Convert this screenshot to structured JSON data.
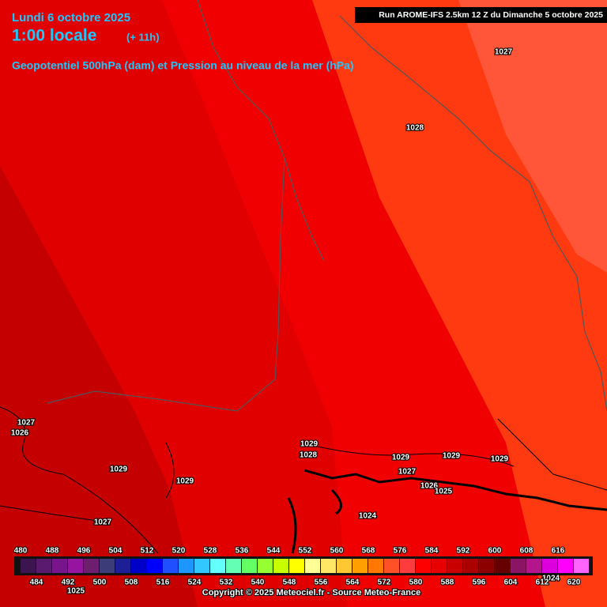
{
  "header": {
    "date": "Lundi 6 octobre 2025",
    "time": "1:00 locale",
    "lead": "(+ 11h)",
    "title": "Geopotentiel 500hPa (dam) et Pression au niveau de la mer (hPa)",
    "run": "Run AROME-IFS 2.5km 12 Z du Dimanche 5 octobre 2025"
  },
  "isobars": [
    1027,
    1028,
    1027,
    1026,
    1029,
    1029,
    1027,
    1029,
    1028,
    1029,
    1029,
    1029,
    1027,
    1026,
    1025,
    1024,
    1024,
    1025
  ],
  "legend": {
    "values": [
      480,
      484,
      488,
      492,
      496,
      500,
      504,
      508,
      512,
      516,
      520,
      524,
      528,
      532,
      536,
      540,
      544,
      548,
      552,
      556,
      560,
      564,
      568,
      572,
      576,
      580,
      584,
      588,
      592,
      596,
      600,
      604,
      608,
      612,
      616,
      620
    ],
    "colors": [
      "#3c1450",
      "#5a1a6e",
      "#78148c",
      "#9614a0",
      "#6e1e6e",
      "#3c3c78",
      "#1e1e96",
      "#0000c8",
      "#0000ff",
      "#1e50ff",
      "#1e96ff",
      "#32c8ff",
      "#64ffff",
      "#64ffb4",
      "#64ff64",
      "#96ff32",
      "#c8ff00",
      "#ffff00",
      "#ffff96",
      "#ffe664",
      "#ffc832",
      "#ffa000",
      "#ff7800",
      "#ff5028",
      "#ff3c3c",
      "#ff0000",
      "#e60000",
      "#c80000",
      "#aa0000",
      "#8c0000",
      "#640000",
      "#8c1464",
      "#b4148c",
      "#dc00dc",
      "#ff00ff",
      "#ff64ff"
    ]
  },
  "copyright": "Copyright © 2025 Meteociel.fr - Source Meteo-France"
}
